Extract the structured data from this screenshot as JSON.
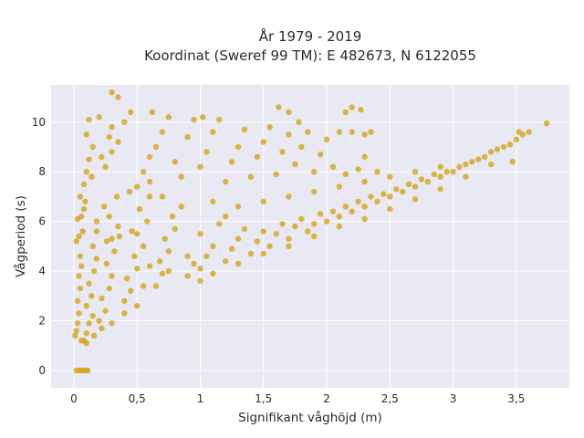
{
  "chart_data": {
    "type": "scatter",
    "title_line1": "År 1979 - 2019",
    "title_line2": "Koordinat (Sweref 99 TM): E 482673, N 6122055",
    "xlabel": "Signifikant våghöjd (m)",
    "ylabel": "Vågperiod (s)",
    "xlim": [
      -0.18,
      3.92
    ],
    "ylim": [
      -0.7,
      11.5
    ],
    "x_ticks": [
      0,
      0.5,
      1,
      1.5,
      2,
      2.5,
      3,
      3.5
    ],
    "x_tick_labels": [
      "0",
      "0,5",
      "1",
      "1,5",
      "2",
      "2,5",
      "3",
      "3,5"
    ],
    "y_ticks": [
      0,
      2,
      4,
      6,
      8,
      10
    ],
    "y_tick_labels": [
      "0",
      "2",
      "4",
      "6",
      "8",
      "10"
    ],
    "grid": true,
    "legend": "none",
    "marker_color": "#D4A21F",
    "background_color": "#E8E9F2",
    "points": [
      [
        0.02,
        0.0
      ],
      [
        0.04,
        0.0
      ],
      [
        0.06,
        0.0
      ],
      [
        0.08,
        0.0
      ],
      [
        0.1,
        0.0
      ],
      [
        0.11,
        0.0
      ],
      [
        0.01,
        1.4
      ],
      [
        0.02,
        1.6
      ],
      [
        0.03,
        1.9
      ],
      [
        0.04,
        2.3
      ],
      [
        0.03,
        2.8
      ],
      [
        0.05,
        3.3
      ],
      [
        0.04,
        3.8
      ],
      [
        0.06,
        4.2
      ],
      [
        0.05,
        4.6
      ],
      [
        0.08,
        1.2
      ],
      [
        0.1,
        1.5
      ],
      [
        0.12,
        1.9
      ],
      [
        0.15,
        2.2
      ],
      [
        0.1,
        2.6
      ],
      [
        0.14,
        3.0
      ],
      [
        0.12,
        3.5
      ],
      [
        0.16,
        4.0
      ],
      [
        0.18,
        4.5
      ],
      [
        0.15,
        5.0
      ],
      [
        0.2,
        2.0
      ],
      [
        0.25,
        2.4
      ],
      [
        0.22,
        2.9
      ],
      [
        0.28,
        3.3
      ],
      [
        0.3,
        3.8
      ],
      [
        0.26,
        4.3
      ],
      [
        0.32,
        4.8
      ],
      [
        0.3,
        5.3
      ],
      [
        0.35,
        5.8
      ],
      [
        0.28,
        6.2
      ],
      [
        0.4,
        2.8
      ],
      [
        0.45,
        3.2
      ],
      [
        0.42,
        3.7
      ],
      [
        0.5,
        4.1
      ],
      [
        0.48,
        4.6
      ],
      [
        0.55,
        5.0
      ],
      [
        0.5,
        5.5
      ],
      [
        0.58,
        6.0
      ],
      [
        0.52,
        6.5
      ],
      [
        0.6,
        7.0
      ],
      [
        0.65,
        3.4
      ],
      [
        0.7,
        3.9
      ],
      [
        0.68,
        4.4
      ],
      [
        0.75,
        4.8
      ],
      [
        0.72,
        5.3
      ],
      [
        0.8,
        5.7
      ],
      [
        0.78,
        6.2
      ],
      [
        0.85,
        6.6
      ],
      [
        0.9,
        3.8
      ],
      [
        0.95,
        4.3
      ],
      [
        1.0,
        4.1
      ],
      [
        1.05,
        4.6
      ],
      [
        1.1,
        5.0
      ],
      [
        1.0,
        5.5
      ],
      [
        1.15,
        5.9
      ],
      [
        1.2,
        4.4
      ],
      [
        1.25,
        4.9
      ],
      [
        1.3,
        5.3
      ],
      [
        1.2,
        6.2
      ],
      [
        1.35,
        5.7
      ],
      [
        1.4,
        4.7
      ],
      [
        1.45,
        5.2
      ],
      [
        1.5,
        5.6
      ],
      [
        1.55,
        5.0
      ],
      [
        1.6,
        5.5
      ],
      [
        1.65,
        5.9
      ],
      [
        1.7,
        5.3
      ],
      [
        1.75,
        5.8
      ],
      [
        1.8,
        6.1
      ],
      [
        1.85,
        5.6
      ],
      [
        1.9,
        5.9
      ],
      [
        1.95,
        6.3
      ],
      [
        2.0,
        6.0
      ],
      [
        2.05,
        6.4
      ],
      [
        2.1,
        6.2
      ],
      [
        2.15,
        6.6
      ],
      [
        2.2,
        6.4
      ],
      [
        2.25,
        6.8
      ],
      [
        2.3,
        6.6
      ],
      [
        2.35,
        7.0
      ],
      [
        2.4,
        6.8
      ],
      [
        2.45,
        7.1
      ],
      [
        2.5,
        7.0
      ],
      [
        2.55,
        7.3
      ],
      [
        2.6,
        7.2
      ],
      [
        2.65,
        7.5
      ],
      [
        2.7,
        7.4
      ],
      [
        2.75,
        7.7
      ],
      [
        2.8,
        7.6
      ],
      [
        2.85,
        7.9
      ],
      [
        2.9,
        7.8
      ],
      [
        2.95,
        8.0
      ],
      [
        3.0,
        8.0
      ],
      [
        3.05,
        8.2
      ],
      [
        3.1,
        8.3
      ],
      [
        3.15,
        8.4
      ],
      [
        3.2,
        8.5
      ],
      [
        3.25,
        8.6
      ],
      [
        3.3,
        8.8
      ],
      [
        3.35,
        8.9
      ],
      [
        3.4,
        9.0
      ],
      [
        3.45,
        9.1
      ],
      [
        3.5,
        9.3
      ],
      [
        3.52,
        9.6
      ],
      [
        3.55,
        9.5
      ],
      [
        3.6,
        9.6
      ],
      [
        3.47,
        8.4
      ],
      [
        3.74,
        9.95
      ],
      [
        0.05,
        7.0
      ],
      [
        0.08,
        7.5
      ],
      [
        0.1,
        8.0
      ],
      [
        0.12,
        8.5
      ],
      [
        0.15,
        9.0
      ],
      [
        0.1,
        9.5
      ],
      [
        0.12,
        10.1
      ],
      [
        0.2,
        10.2
      ],
      [
        0.08,
        6.5
      ],
      [
        0.14,
        7.8
      ],
      [
        0.25,
        8.2
      ],
      [
        0.3,
        8.8
      ],
      [
        0.35,
        9.2
      ],
      [
        0.3,
        9.8
      ],
      [
        0.4,
        10.0
      ],
      [
        0.3,
        11.2
      ],
      [
        0.35,
        11.0
      ],
      [
        0.45,
        10.4
      ],
      [
        0.22,
        8.6
      ],
      [
        0.28,
        9.4
      ],
      [
        0.5,
        7.4
      ],
      [
        0.55,
        8.0
      ],
      [
        0.6,
        8.6
      ],
      [
        0.65,
        9.0
      ],
      [
        0.7,
        9.6
      ],
      [
        0.75,
        10.2
      ],
      [
        0.62,
        10.4
      ],
      [
        0.8,
        8.4
      ],
      [
        0.85,
        7.8
      ],
      [
        0.9,
        9.4
      ],
      [
        1.0,
        8.2
      ],
      [
        1.05,
        8.8
      ],
      [
        1.1,
        9.6
      ],
      [
        1.15,
        10.1
      ],
      [
        1.2,
        7.6
      ],
      [
        1.25,
        8.4
      ],
      [
        1.3,
        9.0
      ],
      [
        1.35,
        9.7
      ],
      [
        1.4,
        7.8
      ],
      [
        1.45,
        8.6
      ],
      [
        1.5,
        9.2
      ],
      [
        1.55,
        9.8
      ],
      [
        1.6,
        7.9
      ],
      [
        1.65,
        8.8
      ],
      [
        1.7,
        9.5
      ],
      [
        1.75,
        8.3
      ],
      [
        1.8,
        9.0
      ],
      [
        1.85,
        9.6
      ],
      [
        1.9,
        8.0
      ],
      [
        1.95,
        8.7
      ],
      [
        2.0,
        9.3
      ],
      [
        2.05,
        8.2
      ],
      [
        2.1,
        9.6
      ],
      [
        2.15,
        7.9
      ],
      [
        2.2,
        9.6
      ],
      [
        2.25,
        8.1
      ],
      [
        2.3,
        9.5
      ],
      [
        2.4,
        8.0
      ],
      [
        2.2,
        10.6
      ],
      [
        2.15,
        10.4
      ],
      [
        2.27,
        10.5
      ],
      [
        2.35,
        9.6
      ],
      [
        2.3,
        8.6
      ],
      [
        1.7,
        10.4
      ],
      [
        1.78,
        10.0
      ],
      [
        1.02,
        10.2
      ],
      [
        1.62,
        10.6
      ],
      [
        0.95,
        10.1
      ],
      [
        0.02,
        5.2
      ],
      [
        0.03,
        6.1
      ],
      [
        0.07,
        5.6
      ],
      [
        0.09,
        6.8
      ],
      [
        0.18,
        6.0
      ],
      [
        0.24,
        6.6
      ],
      [
        0.34,
        7.0
      ],
      [
        0.44,
        7.2
      ],
      [
        0.6,
        7.6
      ],
      [
        0.7,
        7.0
      ],
      [
        1.1,
        6.8
      ],
      [
        1.3,
        6.6
      ],
      [
        1.5,
        6.8
      ],
      [
        1.7,
        7.0
      ],
      [
        1.9,
        7.2
      ],
      [
        2.1,
        7.4
      ],
      [
        2.3,
        7.6
      ],
      [
        2.5,
        7.8
      ],
      [
        2.7,
        8.0
      ],
      [
        2.9,
        8.2
      ],
      [
        0.6,
        4.2
      ],
      [
        0.75,
        4.0
      ],
      [
        0.9,
        4.6
      ],
      [
        1.0,
        3.6
      ],
      [
        1.1,
        3.9
      ],
      [
        1.3,
        4.3
      ],
      [
        1.5,
        4.7
      ],
      [
        1.7,
        5.0
      ],
      [
        1.9,
        5.4
      ],
      [
        2.1,
        5.8
      ],
      [
        2.3,
        6.1
      ],
      [
        2.5,
        6.5
      ],
      [
        2.7,
        6.9
      ],
      [
        2.9,
        7.3
      ],
      [
        3.1,
        7.8
      ],
      [
        3.3,
        8.3
      ],
      [
        0.3,
        1.9
      ],
      [
        0.4,
        2.3
      ],
      [
        0.5,
        2.6
      ],
      [
        0.55,
        3.4
      ],
      [
        0.1,
        1.1
      ],
      [
        0.06,
        1.2
      ],
      [
        0.16,
        1.4
      ],
      [
        0.22,
        1.7
      ],
      [
        0.06,
        6.2
      ],
      [
        0.04,
        5.4
      ],
      [
        0.18,
        5.6
      ],
      [
        0.26,
        5.2
      ],
      [
        0.36,
        5.4
      ],
      [
        0.46,
        5.6
      ]
    ]
  }
}
